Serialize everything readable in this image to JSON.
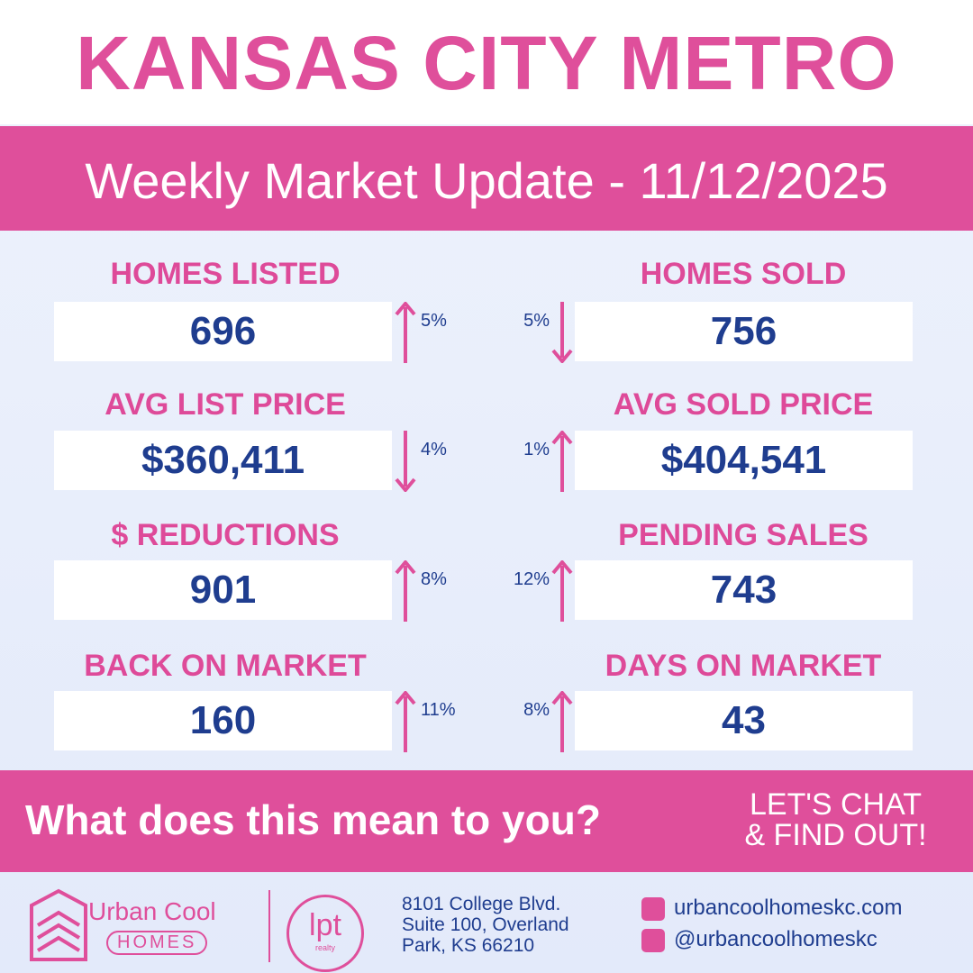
{
  "header": {
    "title": "KANSAS CITY METRO",
    "subtitle": "Weekly Market Update - 11/12/2025"
  },
  "stats": [
    {
      "label": "HOMES LISTED",
      "value": "696",
      "change": "5%",
      "direction": "up"
    },
    {
      "label": "HOMES SOLD",
      "value": "756",
      "change": "5%",
      "direction": "down"
    },
    {
      "label": "AVG LIST PRICE",
      "value": "$360,411",
      "change": "4%",
      "direction": "down"
    },
    {
      "label": "AVG SOLD PRICE",
      "value": "$404,541",
      "change": "1%",
      "direction": "up"
    },
    {
      "label": "$ REDUCTIONS",
      "value": "901",
      "change": "8%",
      "direction": "up"
    },
    {
      "label": "PENDING SALES",
      "value": "743",
      "change": "12%",
      "direction": "up"
    },
    {
      "label": "BACK ON MARKET",
      "value": "160",
      "change": "11%",
      "direction": "up"
    },
    {
      "label": "DAYS ON MARKET",
      "value": "43",
      "change": "8%",
      "direction": "up"
    }
  ],
  "cta": {
    "question": "What does this mean to you?",
    "action": [
      "LET'S CHAT",
      "& FIND OUT!"
    ]
  },
  "footer": {
    "brand": {
      "name": "Urban Cool",
      "tag": "HOMES"
    },
    "partner": {
      "name": "lpt",
      "tag": "realty"
    },
    "address": [
      "8101 College Blvd.",
      "Suite 100, Overland",
      "Park, KS 66210"
    ],
    "website": "urbancoolhomeskc.com",
    "social": "@urbancoolhomeskc"
  }
}
